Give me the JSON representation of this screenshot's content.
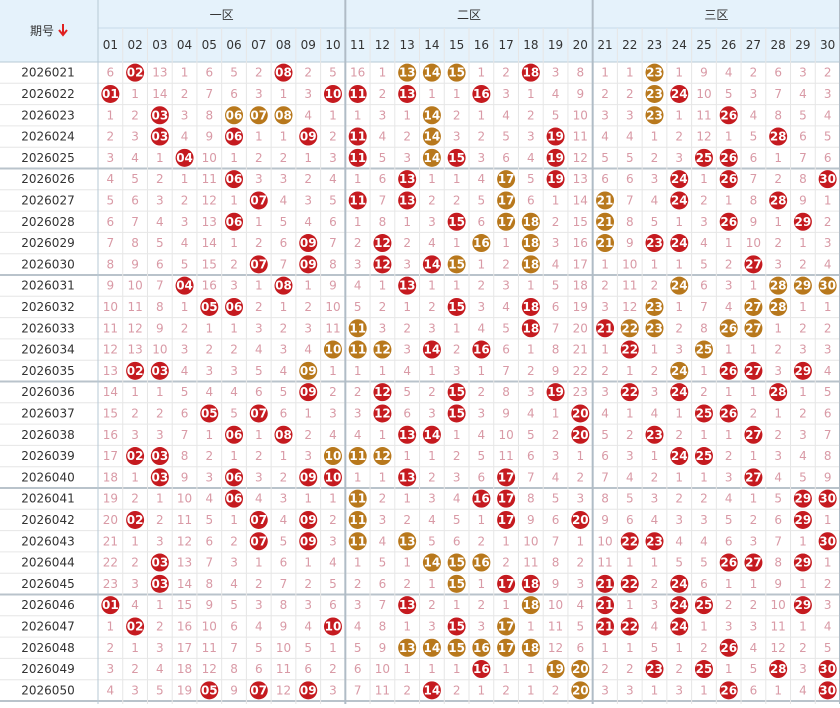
{
  "header": {
    "issue": "期号",
    "zones": [
      "一区",
      "二区",
      "三区"
    ],
    "numbers": [
      "01",
      "02",
      "03",
      "04",
      "05",
      "06",
      "07",
      "08",
      "09",
      "10",
      "11",
      "12",
      "13",
      "14",
      "15",
      "16",
      "17",
      "18",
      "19",
      "20",
      "21",
      "22",
      "23",
      "24",
      "25",
      "26",
      "27",
      "28",
      "29",
      "30"
    ]
  },
  "colors": {
    "red": "#c51a1f",
    "gold": "#b8781c",
    "miss": "#d99aa6"
  },
  "rows": [
    {
      "issue": "2026021",
      "cells": [
        6,
        "02",
        13,
        1,
        6,
        5,
        2,
        "08",
        2,
        5,
        16,
        1,
        "13",
        "14",
        "15",
        1,
        2,
        "18",
        3,
        8,
        1,
        1,
        "23",
        1,
        9,
        4,
        2,
        6,
        3,
        2
      ],
      "gold": [
        "13",
        "14",
        "15",
        "23"
      ]
    },
    {
      "issue": "2026022",
      "cells": [
        "01",
        1,
        14,
        2,
        7,
        6,
        3,
        1,
        3,
        "10",
        "11",
        2,
        "13",
        1,
        1,
        "16",
        3,
        1,
        4,
        9,
        2,
        2,
        "23",
        "24",
        10,
        5,
        3,
        7,
        4,
        3
      ],
      "gold": [
        "23"
      ]
    },
    {
      "issue": "2026023",
      "cells": [
        1,
        2,
        "03",
        3,
        8,
        "06",
        "07",
        "08",
        4,
        1,
        1,
        3,
        1,
        "14",
        2,
        1,
        4,
        2,
        5,
        10,
        3,
        3,
        "23",
        1,
        11,
        "26",
        4,
        8,
        5,
        4
      ],
      "gold": [
        "06",
        "07",
        "08",
        "14",
        "23"
      ]
    },
    {
      "issue": "2026024",
      "cells": [
        2,
        3,
        "03",
        4,
        9,
        "06",
        1,
        1,
        "09",
        2,
        "11",
        4,
        2,
        "14",
        3,
        2,
        5,
        3,
        "19",
        11,
        4,
        4,
        1,
        2,
        12,
        1,
        5,
        "28",
        6,
        5
      ],
      "gold": [
        "14"
      ]
    },
    {
      "issue": "2026025",
      "cells": [
        3,
        4,
        1,
        "04",
        10,
        1,
        2,
        2,
        1,
        3,
        "11",
        5,
        3,
        "14",
        "15",
        3,
        6,
        4,
        "19",
        12,
        5,
        5,
        2,
        3,
        "25",
        "26",
        6,
        1,
        7,
        6
      ],
      "gold": [
        "14"
      ]
    },
    {
      "issue": "2026026",
      "cells": [
        4,
        5,
        2,
        1,
        11,
        "06",
        3,
        3,
        2,
        4,
        1,
        6,
        "13",
        1,
        1,
        4,
        "17",
        5,
        "19",
        13,
        6,
        6,
        3,
        "24",
        1,
        "26",
        7,
        2,
        8,
        "30"
      ],
      "gold": [
        "17"
      ]
    },
    {
      "issue": "2026027",
      "cells": [
        5,
        6,
        3,
        2,
        12,
        1,
        "07",
        4,
        3,
        5,
        "11",
        7,
        "13",
        2,
        2,
        5,
        "17",
        6,
        1,
        14,
        "21",
        7,
        4,
        "24",
        2,
        1,
        8,
        "28",
        9,
        1
      ],
      "gold": [
        "17",
        "21"
      ]
    },
    {
      "issue": "2026028",
      "cells": [
        6,
        7,
        4,
        3,
        13,
        "06",
        1,
        5,
        4,
        6,
        1,
        8,
        1,
        3,
        "15",
        6,
        "17",
        "18",
        2,
        15,
        "21",
        8,
        5,
        1,
        3,
        "26",
        9,
        1,
        "29",
        2
      ],
      "gold": [
        "17",
        "18",
        "21"
      ]
    },
    {
      "issue": "2026029",
      "cells": [
        7,
        8,
        5,
        4,
        14,
        1,
        2,
        6,
        "09",
        7,
        2,
        "12",
        2,
        4,
        1,
        "16",
        1,
        "18",
        3,
        16,
        "21",
        9,
        "23",
        "24",
        4,
        1,
        10,
        2,
        1,
        3
      ],
      "gold": [
        "16",
        "18",
        "21"
      ]
    },
    {
      "issue": "2026030",
      "cells": [
        8,
        9,
        6,
        5,
        15,
        2,
        "07",
        7,
        "09",
        8,
        3,
        "12",
        3,
        "14",
        "15",
        1,
        2,
        "18",
        4,
        17,
        1,
        10,
        1,
        1,
        5,
        2,
        "27",
        3,
        2,
        4
      ],
      "gold": [
        "15",
        "18"
      ]
    },
    {
      "issue": "2026031",
      "cells": [
        9,
        10,
        7,
        "04",
        16,
        3,
        1,
        "08",
        1,
        9,
        4,
        1,
        "13",
        1,
        1,
        2,
        3,
        1,
        5,
        18,
        2,
        11,
        2,
        "24",
        6,
        3,
        1,
        "28",
        "29",
        "30"
      ],
      "gold": [
        "24",
        "28",
        "29",
        "30"
      ]
    },
    {
      "issue": "2026032",
      "cells": [
        10,
        11,
        8,
        1,
        "05",
        "06",
        2,
        1,
        2,
        10,
        5,
        2,
        1,
        2,
        "15",
        3,
        4,
        "18",
        6,
        19,
        3,
        12,
        "23",
        1,
        7,
        4,
        "27",
        "28",
        1,
        1
      ],
      "gold": [
        "23",
        "27",
        "28"
      ]
    },
    {
      "issue": "2026033",
      "cells": [
        11,
        12,
        9,
        2,
        1,
        1,
        3,
        2,
        3,
        11,
        "11",
        3,
        2,
        3,
        1,
        4,
        5,
        "18",
        7,
        20,
        "21",
        "22",
        "23",
        2,
        8,
        "26",
        "27",
        1,
        2,
        2
      ],
      "gold": [
        "11",
        "22",
        "23",
        "26",
        "27"
      ]
    },
    {
      "issue": "2026034",
      "cells": [
        12,
        13,
        10,
        3,
        2,
        2,
        4,
        3,
        4,
        "10",
        "11",
        "12",
        3,
        "14",
        2,
        "16",
        6,
        1,
        8,
        21,
        1,
        "22",
        1,
        3,
        "25",
        1,
        1,
        2,
        3,
        3
      ],
      "gold": [
        "10",
        "11",
        "12",
        "25"
      ]
    },
    {
      "issue": "2026035",
      "cells": [
        13,
        "02",
        "03",
        4,
        3,
        3,
        5,
        4,
        "09",
        1,
        1,
        1,
        4,
        1,
        3,
        1,
        7,
        2,
        9,
        22,
        2,
        1,
        2,
        "24",
        1,
        "26",
        "27",
        3,
        "29",
        4
      ],
      "gold": [
        "09",
        "24"
      ]
    },
    {
      "issue": "2026036",
      "cells": [
        14,
        1,
        1,
        5,
        4,
        4,
        6,
        5,
        "09",
        2,
        2,
        "12",
        5,
        2,
        "15",
        2,
        8,
        3,
        "19",
        23,
        3,
        "22",
        3,
        "24",
        2,
        1,
        1,
        "28",
        1,
        5
      ],
      "gold": []
    },
    {
      "issue": "2026037",
      "cells": [
        15,
        2,
        2,
        6,
        "05",
        5,
        "07",
        6,
        1,
        3,
        3,
        "12",
        6,
        3,
        "15",
        3,
        9,
        4,
        1,
        "20",
        4,
        1,
        4,
        1,
        "25",
        "26",
        2,
        1,
        2,
        6
      ],
      "gold": []
    },
    {
      "issue": "2026038",
      "cells": [
        16,
        3,
        3,
        7,
        1,
        "06",
        1,
        "08",
        2,
        4,
        4,
        1,
        "13",
        "14",
        1,
        4,
        10,
        5,
        2,
        "20",
        5,
        2,
        "23",
        2,
        1,
        1,
        "27",
        2,
        3,
        7
      ],
      "gold": []
    },
    {
      "issue": "2026039",
      "cells": [
        17,
        "02",
        "03",
        8,
        2,
        1,
        2,
        1,
        3,
        "10",
        "11",
        "12",
        1,
        1,
        2,
        5,
        11,
        6,
        3,
        1,
        6,
        3,
        1,
        "24",
        "25",
        2,
        1,
        3,
        4,
        8
      ],
      "gold": [
        "10",
        "11",
        "12"
      ]
    },
    {
      "issue": "2026040",
      "cells": [
        18,
        1,
        "03",
        9,
        3,
        "06",
        3,
        2,
        "09",
        "10",
        1,
        1,
        "13",
        2,
        3,
        6,
        "17",
        7,
        4,
        2,
        7,
        4,
        2,
        1,
        1,
        3,
        "27",
        4,
        5,
        9
      ],
      "gold": []
    },
    {
      "issue": "2026041",
      "cells": [
        19,
        2,
        1,
        10,
        4,
        "06",
        4,
        3,
        1,
        1,
        "11",
        2,
        1,
        3,
        4,
        "16",
        "17",
        8,
        5,
        3,
        8,
        5,
        3,
        2,
        2,
        4,
        1,
        5,
        "29",
        "30"
      ],
      "gold": [
        "11"
      ]
    },
    {
      "issue": "2026042",
      "cells": [
        20,
        "02",
        2,
        11,
        5,
        1,
        "07",
        4,
        "09",
        2,
        "11",
        3,
        2,
        4,
        5,
        1,
        "17",
        9,
        6,
        "20",
        9,
        6,
        4,
        3,
        3,
        5,
        2,
        6,
        "29",
        1
      ],
      "gold": [
        "11"
      ]
    },
    {
      "issue": "2026043",
      "cells": [
        21,
        1,
        3,
        12,
        6,
        2,
        "07",
        5,
        "09",
        3,
        "11",
        4,
        "13",
        5,
        6,
        2,
        1,
        10,
        7,
        1,
        10,
        "22",
        "23",
        4,
        4,
        6,
        3,
        7,
        1,
        "30"
      ],
      "gold": [
        "11",
        "13"
      ]
    },
    {
      "issue": "2026044",
      "cells": [
        22,
        2,
        "03",
        13,
        7,
        3,
        1,
        6,
        1,
        4,
        1,
        5,
        1,
        "14",
        "15",
        "16",
        2,
        11,
        8,
        2,
        11,
        1,
        1,
        5,
        5,
        "26",
        "27",
        8,
        "29",
        1
      ],
      "gold": [
        "14",
        "15",
        "16"
      ]
    },
    {
      "issue": "2026045",
      "cells": [
        23,
        3,
        "03",
        14,
        8,
        4,
        2,
        7,
        2,
        5,
        2,
        6,
        2,
        1,
        "15",
        1,
        "17",
        "18",
        9,
        3,
        "21",
        "22",
        2,
        "24",
        6,
        1,
        1,
        9,
        1,
        2
      ],
      "gold": [
        "15"
      ]
    },
    {
      "issue": "2026046",
      "cells": [
        "01",
        4,
        1,
        15,
        9,
        5,
        3,
        8,
        3,
        6,
        3,
        7,
        "13",
        2,
        1,
        2,
        1,
        "18",
        10,
        4,
        "21",
        1,
        3,
        "24",
        "25",
        2,
        2,
        10,
        "29",
        3
      ],
      "gold": [
        "18"
      ]
    },
    {
      "issue": "2026047",
      "cells": [
        1,
        "02",
        2,
        16,
        10,
        6,
        4,
        9,
        4,
        "10",
        4,
        8,
        1,
        3,
        "15",
        3,
        "17",
        1,
        11,
        5,
        "21",
        "22",
        4,
        "24",
        1,
        3,
        3,
        11,
        1,
        4
      ],
      "gold": [
        "17"
      ]
    },
    {
      "issue": "2026048",
      "cells": [
        2,
        1,
        3,
        17,
        11,
        7,
        5,
        10,
        5,
        1,
        5,
        9,
        "13",
        "14",
        "15",
        "16",
        "17",
        "18",
        12,
        6,
        1,
        1,
        5,
        1,
        2,
        "26",
        4,
        12,
        2,
        5
      ],
      "gold": [
        "13",
        "14",
        "15",
        "16",
        "17",
        "18"
      ]
    },
    {
      "issue": "2026049",
      "cells": [
        3,
        2,
        4,
        18,
        12,
        8,
        6,
        11,
        6,
        2,
        6,
        10,
        1,
        1,
        1,
        "16",
        1,
        1,
        "19",
        "20",
        2,
        2,
        "23",
        2,
        "25",
        1,
        5,
        "28",
        3,
        "30"
      ],
      "gold": [
        "19",
        "20"
      ]
    },
    {
      "issue": "2026050",
      "cells": [
        4,
        3,
        5,
        19,
        "05",
        9,
        "07",
        12,
        "09",
        3,
        7,
        11,
        2,
        "14",
        2,
        1,
        2,
        1,
        2,
        "20",
        3,
        3,
        1,
        3,
        1,
        "26",
        6,
        1,
        4,
        "30"
      ],
      "gold": [
        "20"
      ]
    }
  ]
}
